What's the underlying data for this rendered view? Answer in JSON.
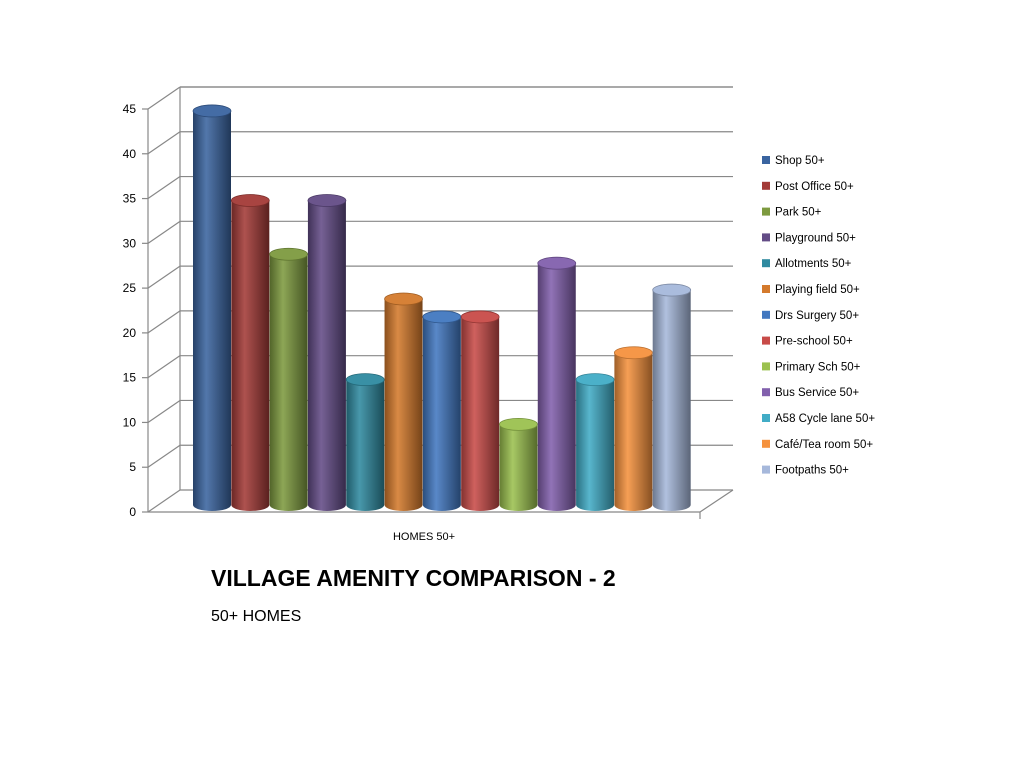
{
  "chart_data": {
    "type": "bar",
    "style": "3d-cylinder",
    "categories": [
      "HOMES 50+"
    ],
    "ylim": [
      0,
      45
    ],
    "yticks": [
      0,
      5,
      10,
      15,
      20,
      25,
      30,
      35,
      40,
      45
    ],
    "grid": true,
    "legend_position": "right",
    "series": [
      {
        "name": "Shop 50+",
        "values": [
          44
        ],
        "color": "#3a64a0"
      },
      {
        "name": "Post Office 50+",
        "values": [
          34
        ],
        "color": "#a33a37"
      },
      {
        "name": "Park 50+",
        "values": [
          28
        ],
        "color": "#7d9a3f"
      },
      {
        "name": "Playground 50+",
        "values": [
          34
        ],
        "color": "#634c86"
      },
      {
        "name": "Allotments 50+",
        "values": [
          14
        ],
        "color": "#2f8aa0"
      },
      {
        "name": "Playing field 50+",
        "values": [
          23
        ],
        "color": "#d47a2c"
      },
      {
        "name": "Drs Surgery 50+",
        "values": [
          21
        ],
        "color": "#4278c0"
      },
      {
        "name": "Pre-school 50+",
        "values": [
          21
        ],
        "color": "#c84b48"
      },
      {
        "name": "Primary Sch 50+",
        "values": [
          9
        ],
        "color": "#9bc14f"
      },
      {
        "name": "Bus Service 50+",
        "values": [
          27
        ],
        "color": "#8260ad"
      },
      {
        "name": "A58 Cycle lane 50+",
        "values": [
          14
        ],
        "color": "#41acc6"
      },
      {
        "name": "Café/Tea room 50+",
        "values": [
          17
        ],
        "color": "#f5923e"
      },
      {
        "name": "Footpaths 50+",
        "values": [
          24
        ],
        "color": "#a6b8db"
      }
    ],
    "title": "VILLAGE AMENITY COMPARISON - 2",
    "subtitle": "50+ HOMES"
  }
}
